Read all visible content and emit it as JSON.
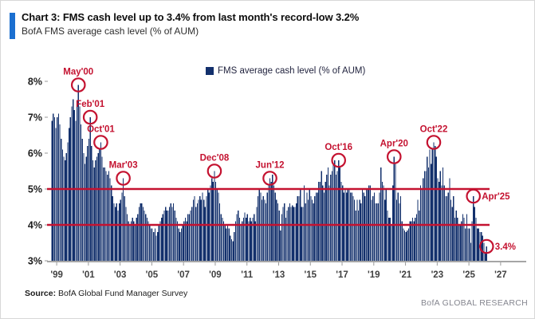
{
  "header": {
    "title": "Chart 3: FMS cash level up to 3.4% from last month's record-low 3.2%",
    "subtitle": "BofA FMS average cash level (% of AUM)"
  },
  "legend": {
    "label": "FMS average cash level (% of AUM)"
  },
  "footer": {
    "source_label": "Source:",
    "source_text": " BofA Global Fund Manager Survey",
    "brand": "BofA GLOBAL RESEARCH"
  },
  "colors": {
    "bar": "#13306C",
    "red": "#C41230",
    "accent": "#1B6FD0",
    "axis_line": "#A6A6A6",
    "tick": "#999999",
    "y_label": "#1d1d1d",
    "x_label": "#404040"
  },
  "chart_data": {
    "type": "bar",
    "title": "FMS cash level up to 3.4% from last month's record-low 3.2%",
    "subtitle": "BofA FMS average cash level (% of AUM)",
    "legend_entries": [
      "FMS average cash level (% of AUM)"
    ],
    "start_month": "1998-09",
    "end_month": "2026-02",
    "unit": "% of AUM",
    "grid": false,
    "y_axis": {
      "min": 3,
      "max": 8,
      "ticks": [
        "8%",
        "7%",
        "6%",
        "5%",
        "4%",
        "3%"
      ]
    },
    "x_axis": {
      "ticks": [
        "'99",
        "'01",
        "'03",
        "'05",
        "'07",
        "'09",
        "'11",
        "'13",
        "'15",
        "'17",
        "'19",
        "'21",
        "'23",
        "'25",
        "'27"
      ]
    },
    "reference_lines": [
      5,
      4
    ],
    "annotations": [
      {
        "label": "May'00",
        "month": "2000-05",
        "value": 7.9,
        "label_pos": "top"
      },
      {
        "label": "Feb'01",
        "month": "2001-02",
        "value": 7.0,
        "label_pos": "top"
      },
      {
        "label": "Oct'01",
        "month": "2001-10",
        "value": 6.3,
        "label_pos": "top"
      },
      {
        "label": "Mar'03",
        "month": "2003-03",
        "value": 5.3,
        "label_pos": "top"
      },
      {
        "label": "Dec'08",
        "month": "2008-12",
        "value": 5.5,
        "label_pos": "top"
      },
      {
        "label": "Jun'12",
        "month": "2012-06",
        "value": 5.3,
        "label_pos": "top"
      },
      {
        "label": "Oct'16",
        "month": "2016-10",
        "value": 5.8,
        "label_pos": "top"
      },
      {
        "label": "Apr'20",
        "month": "2020-04",
        "value": 5.9,
        "label_pos": "top"
      },
      {
        "label": "Oct'22",
        "month": "2022-10",
        "value": 6.3,
        "label_pos": "top"
      },
      {
        "label": "Apr'25",
        "month": "2025-04",
        "value": 4.8,
        "label_pos": "right"
      },
      {
        "label": "3.4%",
        "month": "2026-02",
        "value": 3.4,
        "label_pos": "right"
      }
    ],
    "values": [
      6.9,
      7.1,
      7.0,
      6.7,
      7.0,
      7.1,
      6.8,
      6.4,
      6.1,
      5.9,
      5.8,
      6.0,
      6.3,
      6.7,
      7.0,
      7.3,
      7.5,
      7.2,
      6.9,
      7.4,
      7.9,
      7.3,
      6.8,
      6.4,
      6.0,
      5.7,
      5.9,
      6.2,
      6.4,
      7.0,
      6.2,
      5.8,
      5.6,
      5.8,
      5.9,
      6.0,
      6.1,
      6.3,
      5.9,
      5.6,
      5.6,
      5.5,
      5.4,
      5.5,
      5.3,
      5.1,
      4.8,
      4.6,
      4.5,
      4.6,
      4.4,
      4.6,
      4.7,
      4.9,
      5.3,
      4.8,
      4.5,
      4.3,
      4.1,
      4.0,
      4.1,
      4.2,
      4.1,
      4.0,
      4.2,
      4.3,
      4.5,
      4.6,
      4.6,
      4.5,
      4.4,
      4.3,
      4.2,
      4.1,
      4.0,
      3.9,
      3.9,
      3.8,
      3.9,
      3.7,
      3.8,
      4.0,
      4.1,
      4.2,
      4.3,
      4.4,
      4.5,
      4.4,
      4.4,
      4.5,
      4.6,
      4.5,
      4.6,
      4.4,
      4.2,
      4.1,
      3.9,
      3.8,
      3.9,
      4.0,
      4.1,
      4.2,
      4.1,
      4.3,
      4.3,
      4.4,
      4.5,
      4.7,
      4.8,
      4.5,
      4.6,
      4.7,
      4.8,
      4.7,
      4.9,
      4.7,
      4.5,
      4.8,
      5.0,
      4.9,
      5.1,
      5.3,
      5.2,
      5.5,
      5.2,
      5.0,
      4.9,
      4.6,
      4.3,
      4.2,
      4.1,
      4.0,
      3.9,
      4.0,
      3.9,
      3.7,
      3.6,
      3.55,
      3.8,
      4.1,
      4.3,
      4.4,
      4.2,
      4.0,
      4.1,
      4.2,
      4.35,
      4.2,
      4.3,
      4.1,
      4.2,
      4.1,
      4.2,
      4.3,
      4.1,
      4.5,
      4.8,
      5.0,
      4.9,
      4.7,
      4.8,
      4.7,
      4.6,
      4.9,
      5.1,
      5.3,
      5.2,
      5.4,
      5.1,
      4.9,
      4.7,
      4.6,
      4.4,
      3.85,
      4.3,
      4.5,
      4.6,
      4.2,
      4.4,
      4.5,
      4.6,
      4.5,
      4.55,
      4.5,
      4.5,
      4.6,
      4.8,
      4.8,
      5.0,
      4.5,
      4.5,
      5.1,
      4.6,
      4.9,
      4.7,
      5.0,
      4.8,
      4.7,
      4.6,
      4.8,
      4.9,
      4.9,
      5.2,
      5.2,
      5.5,
      5.1,
      4.9,
      5.2,
      5.4,
      5.6,
      5.1,
      5.4,
      5.5,
      5.7,
      5.8,
      5.4,
      5.5,
      5.8,
      5.6,
      5.2,
      5.1,
      4.9,
      5.0,
      4.9,
      5.0,
      5.0,
      4.9,
      4.9,
      4.8,
      4.7,
      4.4,
      4.7,
      4.4,
      4.7,
      4.6,
      5.0,
      4.9,
      4.8,
      5.0,
      5.0,
      5.1,
      5.1,
      4.7,
      4.8,
      4.9,
      4.6,
      4.6,
      4.6,
      4.9,
      5.6,
      5.2,
      5.1,
      4.7,
      5.0,
      4.4,
      4.2,
      4.2,
      4.0,
      5.1,
      5.9,
      5.7,
      4.7,
      4.9,
      4.6,
      4.8,
      4.1,
      3.9,
      3.85,
      3.8,
      3.85,
      3.9,
      4.1,
      4.1,
      4.2,
      4.1,
      4.2,
      4.3,
      4.7,
      4.4,
      5.1,
      5.0,
      5.3,
      5.5,
      5.5,
      5.9,
      5.6,
      6.1,
      5.7,
      6.1,
      6.3,
      6.2,
      5.9,
      5.3,
      5.2,
      5.5,
      5.1,
      5.6,
      5.1,
      4.8,
      4.8,
      4.9,
      5.3,
      4.7,
      4.5,
      4.8,
      4.2,
      4.4,
      4.2,
      4.0,
      4.0,
      4.1,
      4.3,
      4.2,
      3.9,
      4.3,
      3.9,
      3.9,
      3.5,
      4.1,
      4.8,
      4.5,
      4.2,
      3.9,
      3.9,
      3.8,
      3.8,
      3.7,
      3.5,
      3.2,
      3.4
    ]
  }
}
